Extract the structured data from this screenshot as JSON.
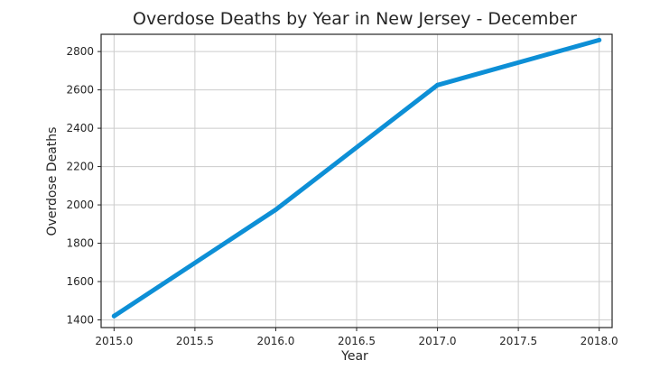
{
  "chart_data": {
    "type": "line",
    "title": "Overdose Deaths by Year in New Jersey - December",
    "xlabel": "Year",
    "ylabel": "Overdose Deaths",
    "xlim": [
      2014.92,
      2018.08
    ],
    "ylim": [
      1360,
      2890
    ],
    "xticks": [
      2015.0,
      2015.5,
      2016.0,
      2016.5,
      2017.0,
      2017.5,
      2018.0
    ],
    "xtick_labels": [
      "2015.0",
      "2015.5",
      "2016.0",
      "2016.5",
      "2017.0",
      "2017.5",
      "2018.0"
    ],
    "yticks": [
      1400,
      1600,
      1800,
      2000,
      2200,
      2400,
      2600,
      2800
    ],
    "ytick_labels": [
      "1400",
      "1600",
      "1800",
      "2000",
      "2200",
      "2400",
      "2600",
      "2800"
    ],
    "grid": true,
    "series": [
      {
        "x": [
          2015,
          2016,
          2017,
          2018
        ],
        "values": [
          1420,
          1975,
          2625,
          2860
        ],
        "color": "#0d8fd6"
      }
    ]
  }
}
